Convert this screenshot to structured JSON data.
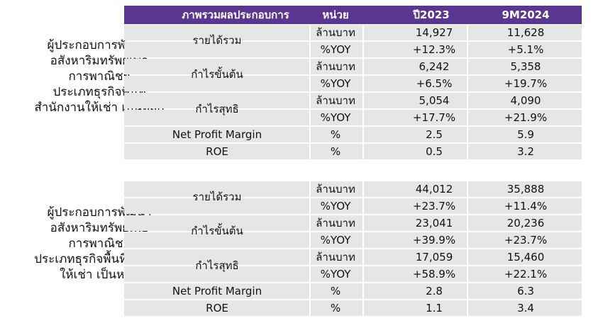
{
  "header": {
    "col_metric": "ภาพรวมผลประกอบการ",
    "col_unit": "หน่วย",
    "col_y1": "ปี2023",
    "col_y2": "9M2024"
  },
  "section1": {
    "company": [
      "ผู้ประกอบการพัฒนา",
      "อสังหาริมทรัพย์เพื่อ",
      "การพาณิชย์",
      "ประเภทธุรกิจพื้นที่",
      "สำนักงานให้เช่า เป็นหลัก"
    ],
    "metric_revenue": "รายได้รวม",
    "metric_gross": "กำไรขั้นต้น",
    "metric_net": "กำไรสุทธิ",
    "rows": [
      {
        "unit": "ล้านบาท",
        "y1": "14,927",
        "y2": "11,628"
      },
      {
        "unit": "%YOY",
        "y1": "+12.3%",
        "y2": "+5.1%"
      },
      {
        "unit": "ล้านบาท",
        "y1": "6,242",
        "y2": "5,358"
      },
      {
        "unit": "%YOY",
        "y1": "+6.5%",
        "y2": "+19.7%"
      },
      {
        "unit": "ล้านบาท",
        "y1": "5,054",
        "y2": "4,090"
      },
      {
        "unit": "%YOY",
        "y1": "+17.7%",
        "y2": "+21.9%"
      },
      {
        "label": "Net Profit Margin",
        "unit": "%",
        "y1": "2.5",
        "y2": "5.9"
      },
      {
        "label": "ROE",
        "unit": "%",
        "y1": "0.5",
        "y2": "3.2"
      }
    ]
  },
  "section2": {
    "company": [
      "ผู้ประกอบการพัฒนา",
      "อสังหาริมทรัพย์เพื่อ",
      "การพาณิชย์",
      "ประเภทธุรกิจพื้นที่ค้าปลีก",
      "ให้เช่า เป็นหลัก"
    ],
    "metric_revenue": "รายได้รวม",
    "metric_gross": "กำไรขั้นต้น",
    "metric_net": "กำไรสุทธิ",
    "rows": [
      {
        "unit": "ล้านบาท",
        "y1": "44,012",
        "y2": "35,888"
      },
      {
        "unit": "%YOY",
        "y1": "+23.7%",
        "y2": "+11.4%"
      },
      {
        "unit": "ล้านบาท",
        "y1": "23,041",
        "y2": "20,236"
      },
      {
        "unit": "%YOY",
        "y1": "+39.9%",
        "y2": "+23.7%"
      },
      {
        "unit": "ล้านบาท",
        "y1": "17,059",
        "y2": "15,460"
      },
      {
        "unit": "%YOY",
        "y1": "+58.9%",
        "y2": "+22.1%"
      },
      {
        "label": "Net Profit Margin",
        "unit": "%",
        "y1": "2.8",
        "y2": "6.3"
      },
      {
        "label": "ROE",
        "unit": "%",
        "y1": "1.1",
        "y2": "3.4"
      }
    ]
  },
  "colors": {
    "header_bg": "#5b3592",
    "row_bg": "#e6e6e6"
  }
}
